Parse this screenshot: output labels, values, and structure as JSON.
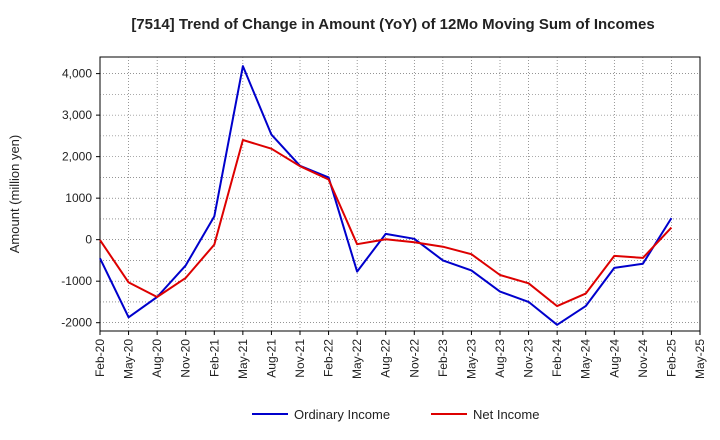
{
  "chart_data": {
    "type": "line",
    "title": "[7514]  Trend of Change in Amount (YoY) of 12Mo Moving Sum of Incomes",
    "xlabel": "",
    "ylabel": "Amount (million yen)",
    "ylim": [
      -2200,
      4400
    ],
    "yticks": [
      -2000,
      -1000,
      0,
      1000,
      2000,
      3000,
      4000
    ],
    "ytick_labels": [
      "-2000",
      "-1000",
      "0",
      "1000",
      "2,000",
      "3,000",
      "4,000"
    ],
    "categories": [
      "Feb-20",
      "May-20",
      "Aug-20",
      "Nov-20",
      "Feb-21",
      "May-21",
      "Aug-21",
      "Nov-21",
      "Feb-22",
      "May-22",
      "Aug-22",
      "Nov-22",
      "Feb-23",
      "May-23",
      "Aug-23",
      "Nov-23",
      "Feb-24",
      "May-24",
      "Aug-24",
      "Nov-24",
      "Feb-25",
      "May-25"
    ],
    "grid": true,
    "legend_position": "bottom",
    "series": [
      {
        "name": "Ordinary Income",
        "color": "#0000cc",
        "values": [
          -450,
          -1870,
          -1380,
          -620,
          560,
          4180,
          2530,
          1780,
          1500,
          -770,
          140,
          20,
          -500,
          -740,
          -1250,
          -1500,
          -2050,
          -1600,
          -680,
          -580,
          520,
          null
        ]
      },
      {
        "name": "Net Income",
        "color": "#dd0000",
        "values": [
          -10,
          -1030,
          -1380,
          -920,
          -120,
          2400,
          2190,
          1770,
          1450,
          -110,
          10,
          -60,
          -170,
          -350,
          -850,
          -1050,
          -1600,
          -1300,
          -390,
          -440,
          290,
          null
        ]
      }
    ]
  }
}
